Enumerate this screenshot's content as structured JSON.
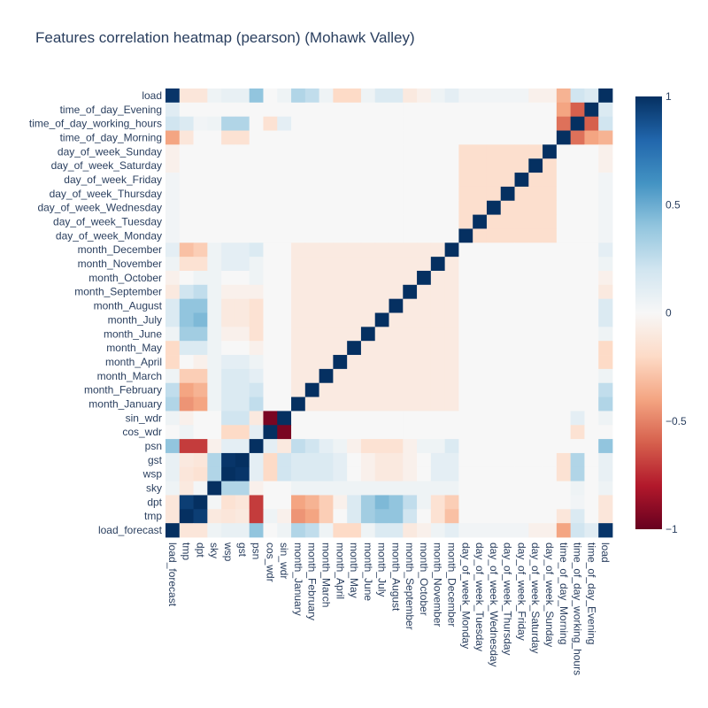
{
  "chart_data": {
    "type": "heatmap",
    "title": "Features correlation heatmap (pearson) (Mohawk Valley)",
    "x_categories": [
      "load_forecast",
      "tmp",
      "dpt",
      "sky",
      "wsp",
      "gst",
      "psn",
      "cos_wdr",
      "sin_wdr",
      "month_January",
      "month_February",
      "month_March",
      "month_April",
      "month_May",
      "month_June",
      "month_July",
      "month_August",
      "month_September",
      "month_October",
      "month_November",
      "month_December",
      "day_of_week_Monday",
      "day_of_week_Tuesday",
      "day_of_week_Wednesday",
      "day_of_week_Thursday",
      "day_of_week_Friday",
      "day_of_week_Saturday",
      "day_of_week_Sunday",
      "time_of_day_Morning",
      "time_of_day_working_hours",
      "time_of_day_Evening",
      "load"
    ],
    "y_categories": [
      "load",
      "time_of_day_Evening",
      "time_of_day_working_hours",
      "time_of_day_Morning",
      "day_of_week_Sunday",
      "day_of_week_Saturday",
      "day_of_week_Friday",
      "day_of_week_Thursday",
      "day_of_week_Wednesday",
      "day_of_week_Tuesday",
      "day_of_week_Monday",
      "month_December",
      "month_November",
      "month_October",
      "month_September",
      "month_August",
      "month_July",
      "month_June",
      "month_May",
      "month_April",
      "month_March",
      "month_February",
      "month_January",
      "sin_wdr",
      "cos_wdr",
      "psn",
      "gst",
      "wsp",
      "sky",
      "dpt",
      "tmp",
      "load_forecast"
    ],
    "colorscale": "RdBu",
    "zmin": -1,
    "zmax": 1,
    "colorbar_ticks": [
      1,
      0.5,
      0,
      -0.5,
      -1
    ],
    "colorbar_tick_labels": [
      "1",
      "0.5",
      "0",
      "−0.5",
      "−1"
    ],
    "z": []
  }
}
